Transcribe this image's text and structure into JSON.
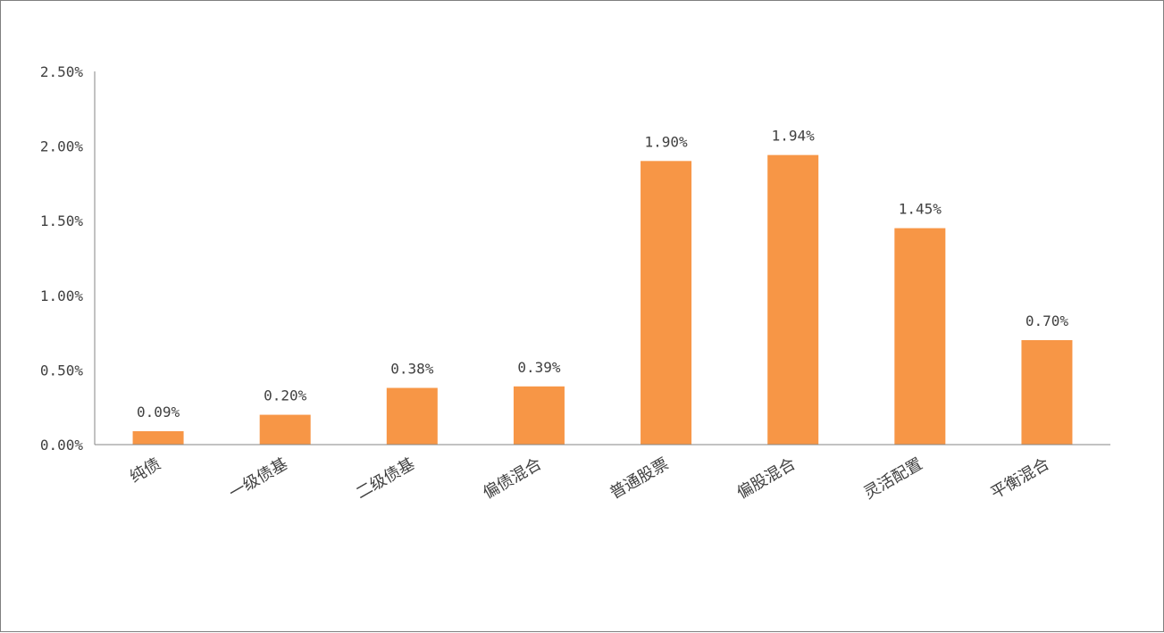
{
  "chart_data": {
    "type": "bar",
    "title": "",
    "xlabel": "",
    "ylabel": "",
    "categories": [
      "纯债",
      "一级债基",
      "二级债基",
      "偏债混合",
      "普通股票",
      "偏股混合",
      "灵活配置",
      "平衡混合"
    ],
    "values": [
      0.09,
      0.2,
      0.38,
      0.39,
      1.9,
      1.94,
      1.45,
      0.7
    ],
    "data_labels": [
      "0.09%",
      "0.20%",
      "0.38%",
      "0.39%",
      "1.90%",
      "1.94%",
      "1.45%",
      "0.70%"
    ],
    "ylim": [
      0,
      2.5
    ],
    "y_ticks": [
      0,
      0.5,
      1.0,
      1.5,
      2.0,
      2.5
    ],
    "y_tick_labels": [
      "0.00%",
      "0.50%",
      "1.00%",
      "1.50%",
      "2.00%",
      "2.50%"
    ],
    "grid": false,
    "legend": "none",
    "bar_color": "#F79646"
  }
}
